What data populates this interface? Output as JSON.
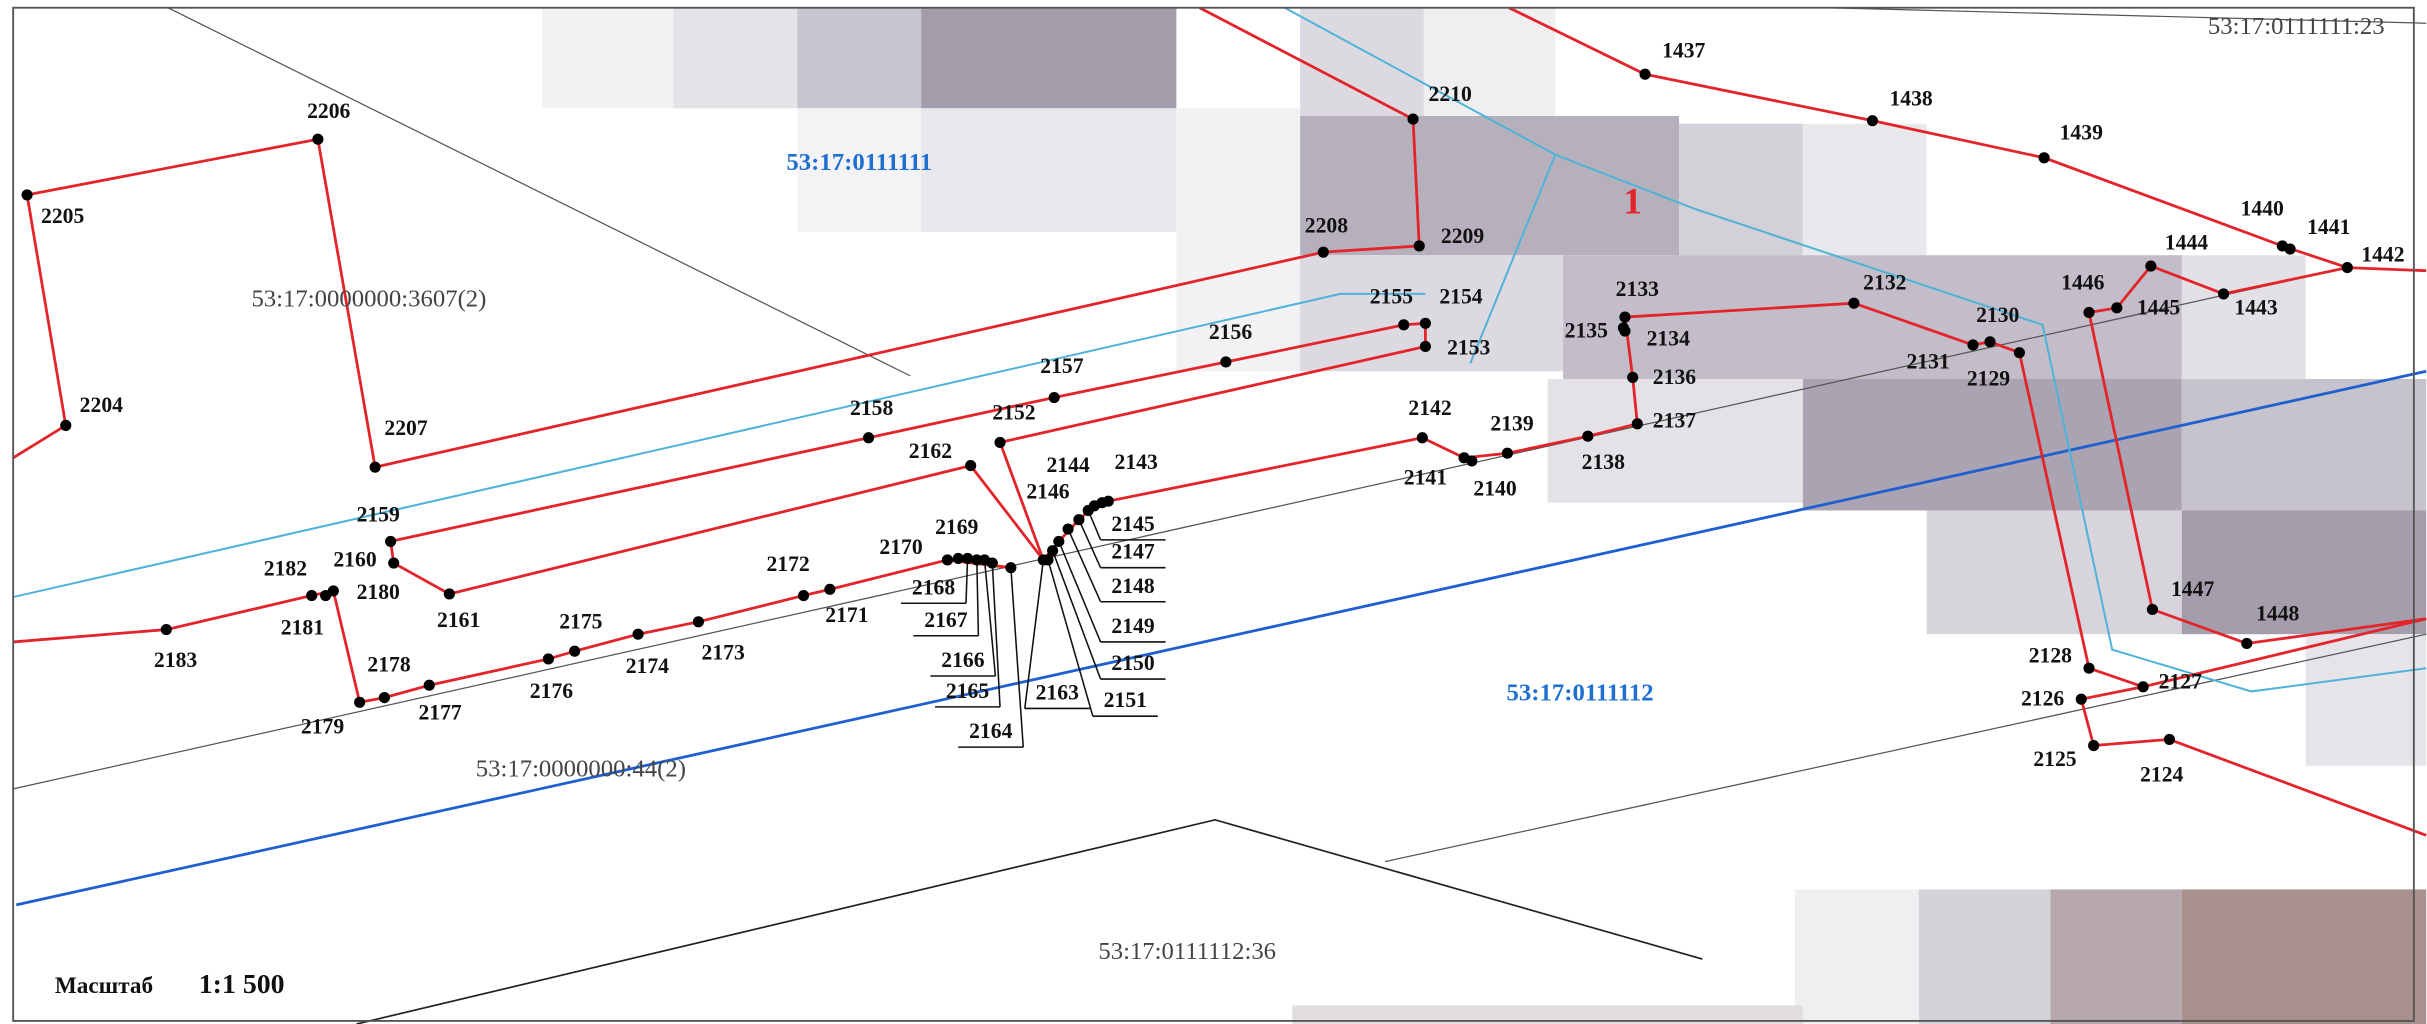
{
  "map": {
    "parcels": [
      "53:17:0111111",
      "53:17:0111112",
      "53:17:0000000:3607(2)",
      "53:17:0000000:44(2)",
      "53:17:0111112:36",
      "53:17:0111111:23"
    ],
    "marker": "1",
    "scale": {
      "label": "Масштаб",
      "value": "1:1 500"
    },
    "points": [
      "2206",
      "2205",
      "2204",
      "2207",
      "2210",
      "2208",
      "2209",
      "1437",
      "1438",
      "1439",
      "1440",
      "1441",
      "1442",
      "1444",
      "1445",
      "1446",
      "1443",
      "2155",
      "2154",
      "2153",
      "2156",
      "2157",
      "2158",
      "2152",
      "2162",
      "2133",
      "2135",
      "2134",
      "2136",
      "2137",
      "2132",
      "2130",
      "2131",
      "2129",
      "2142",
      "2139",
      "2138",
      "2141",
      "2140",
      "2144",
      "2143",
      "2146",
      "2145",
      "2147",
      "2148",
      "2149",
      "2150",
      "2151",
      "2163",
      "2159",
      "2160",
      "2161",
      "2182",
      "2180",
      "2181",
      "2183",
      "2178",
      "2179",
      "2177",
      "2176",
      "2175",
      "2174",
      "2173",
      "2172",
      "2171",
      "2170",
      "2169",
      "2168",
      "2167",
      "2166",
      "2165",
      "2164",
      "2128",
      "2127",
      "2126",
      "2125",
      "2124",
      "1447",
      "1448"
    ]
  }
}
